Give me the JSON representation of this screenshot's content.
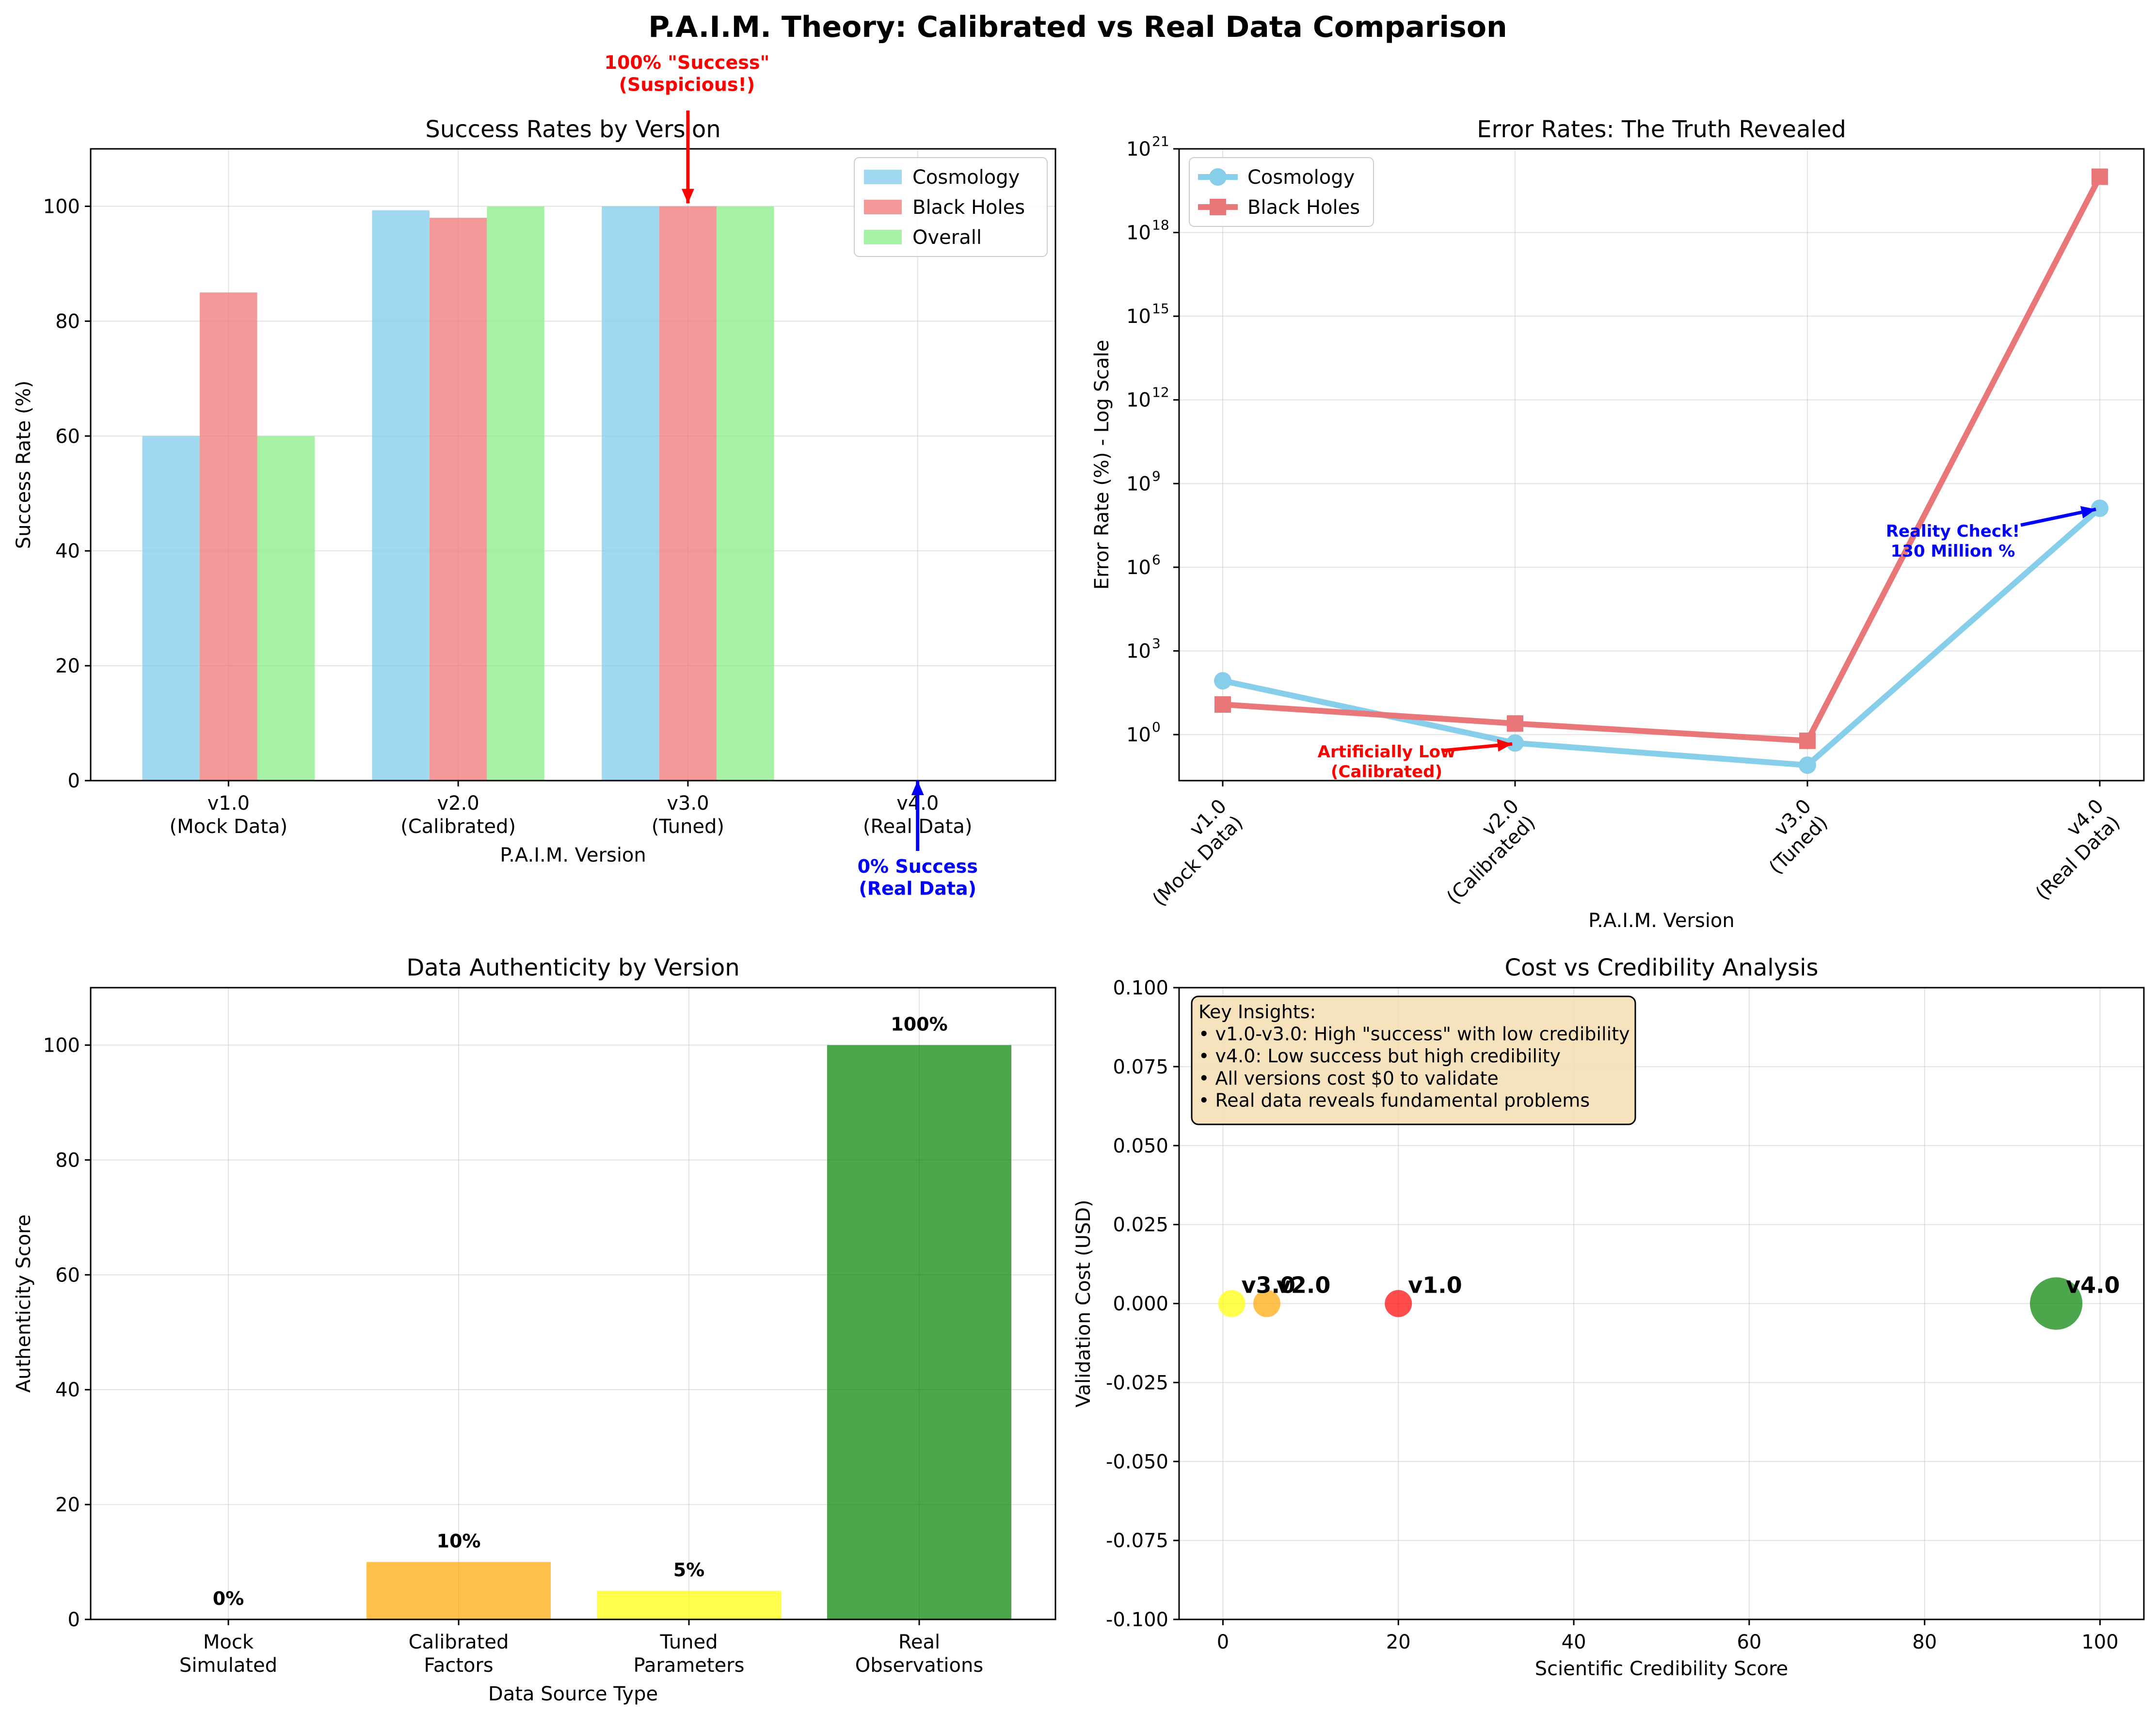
{
  "suptitle": "P.A.I.M. Theory: Calibrated vs Real Data Comparison",
  "chart_data": [
    {
      "id": "success",
      "type": "bar",
      "title": "Success Rates by Version",
      "xlabel": "P.A.I.M. Version",
      "ylabel": "Success Rate (%)",
      "ylim": [
        0,
        110
      ],
      "yticks": [
        "0",
        "20",
        "40",
        "60",
        "80",
        "100"
      ],
      "grid": true,
      "legend_position": "top-right",
      "categories": [
        [
          "v1.0",
          "(Mock Data)"
        ],
        [
          "v2.0",
          "(Calibrated)"
        ],
        [
          "v3.0",
          "(Tuned)"
        ],
        [
          "v4.0",
          "(Real Data)"
        ]
      ],
      "series": [
        {
          "name": "Cosmology",
          "color": "#87ceeb",
          "values": [
            60,
            99.3,
            100,
            0
          ]
        },
        {
          "name": "Black Holes",
          "color": "#f08080",
          "values": [
            85,
            98,
            100,
            0
          ]
        },
        {
          "name": "Overall",
          "color": "#90ee90",
          "values": [
            60,
            100,
            100,
            0
          ]
        }
      ],
      "annotations": [
        {
          "lines": [
            "100% \"Success\"",
            "(Suspicious!)"
          ],
          "color": "#ff0000",
          "target_category": 2,
          "target_value": 100
        },
        {
          "lines": [
            "0% Success",
            "(Real Data)"
          ],
          "color": "#0000ff",
          "target_category": 3,
          "target_value": 0
        }
      ]
    },
    {
      "id": "error",
      "type": "line",
      "title": "Error Rates: The Truth Revealed",
      "xlabel": "P.A.I.M. Version",
      "ylabel": "Error Rate (%) - Log Scale",
      "yscale": "log",
      "yticks": [
        [
          "10",
          "0"
        ],
        [
          "10",
          "3"
        ],
        [
          "10",
          "6"
        ],
        [
          "10",
          "9"
        ],
        [
          "10",
          "12"
        ],
        [
          "10",
          "15"
        ],
        [
          "10",
          "18"
        ],
        [
          "10",
          "21"
        ]
      ],
      "grid": true,
      "legend_position": "top-left",
      "categories": [
        [
          "v1.0",
          "(Mock Data)"
        ],
        [
          "v2.0",
          "(Calibrated)"
        ],
        [
          "v3.0",
          "(Tuned)"
        ],
        [
          "v4.0",
          "(Real Data)"
        ]
      ],
      "series": [
        {
          "name": "Cosmology",
          "color": "#87ceeb",
          "marker": "circle",
          "values": [
            85,
            0.5,
            0.08,
            130000000
          ]
        },
        {
          "name": "Black Holes",
          "color": "#e9777a",
          "marker": "square",
          "values": [
            12,
            2.5,
            0.6,
            1e+20
          ]
        }
      ],
      "annotations": [
        {
          "lines": [
            "Artificially Low",
            "(Calibrated)"
          ],
          "color": "#ff0000",
          "target_category": 1
        },
        {
          "lines": [
            "Reality Check!",
            "130 Million %"
          ],
          "color": "#0000ff",
          "target_category": 3
        }
      ]
    },
    {
      "id": "authenticity",
      "type": "bar",
      "title": "Data Authenticity by Version",
      "xlabel": "Data Source Type",
      "ylabel": "Authenticity Score",
      "ylim": [
        0,
        110
      ],
      "yticks": [
        "0",
        "20",
        "40",
        "60",
        "80",
        "100"
      ],
      "grid": true,
      "categories": [
        [
          "Mock",
          "Simulated"
        ],
        [
          "Calibrated",
          "Factors"
        ],
        [
          "Tuned",
          "Parameters"
        ],
        [
          "Real",
          "Observations"
        ]
      ],
      "values": [
        0,
        10,
        5,
        100
      ],
      "value_labels": [
        "0%",
        "10%",
        "5%",
        "100%"
      ],
      "colors": [
        "#ff0000",
        "#ffa500",
        "#ffff00",
        "#008000"
      ]
    },
    {
      "id": "cost",
      "type": "scatter",
      "title": "Cost vs Credibility Analysis",
      "xlabel": "Scientific Credibility Score",
      "ylabel": "Validation Cost (USD)",
      "xlim": [
        -5,
        105
      ],
      "ylim": [
        -0.1,
        0.1
      ],
      "xticks": [
        "0",
        "20",
        "40",
        "60",
        "80",
        "100"
      ],
      "yticks": [
        "-0.100",
        "-0.075",
        "-0.050",
        "-0.025",
        "0.000",
        "0.025",
        "0.050",
        "0.075",
        "0.100"
      ],
      "grid": true,
      "points": [
        {
          "label": "v1.0",
          "x": 20,
          "y": 0,
          "color": "#ff0000"
        },
        {
          "label": "v2.0",
          "x": 5,
          "y": 0,
          "color": "#ffa500"
        },
        {
          "label": "v3.0",
          "x": 1,
          "y": 0,
          "color": "#ffff00"
        },
        {
          "label": "v4.0",
          "x": 95,
          "y": 0,
          "color": "#008000"
        }
      ],
      "insights": [
        "Key Insights:",
        "• v1.0-v3.0: High \"success\" with low credibility",
        "• v4.0: Low success but high credibility",
        "• All versions cost $0 to validate",
        "• Real data reveals fundamental problems"
      ]
    }
  ]
}
